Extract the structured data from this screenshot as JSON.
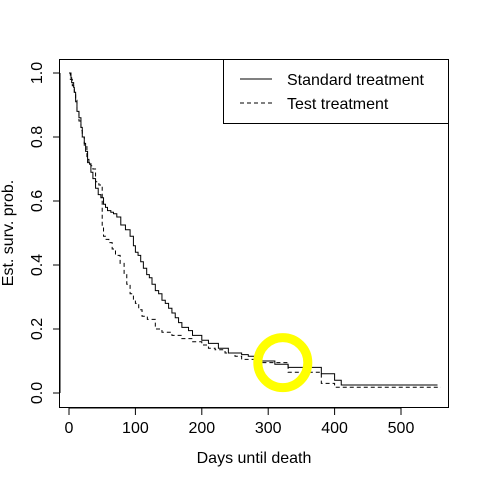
{
  "chart_data": {
    "type": "line",
    "step": true,
    "title": "",
    "xlabel": "Days until death",
    "ylabel": "Est. surv. prob.",
    "xlim": [
      0,
      560
    ],
    "ylim": [
      0,
      1
    ],
    "x_ticks": [
      0,
      100,
      200,
      300,
      400,
      500
    ],
    "x_tick_labels": [
      "0",
      "100",
      "200",
      "300",
      "400",
      "500"
    ],
    "y_ticks": [
      0,
      0.2,
      0.4,
      0.6,
      0.8,
      1.0
    ],
    "y_tick_labels": [
      "0.0",
      "0.2",
      "0.4",
      "0.6",
      "0.8",
      "1.0"
    ],
    "grid": false,
    "legend_position": "top-right",
    "series": [
      {
        "name": "Standard treatment",
        "line_style": "solid",
        "color": "#000000",
        "x": [
          0,
          3,
          4,
          7,
          8,
          10,
          12,
          15,
          18,
          20,
          23,
          25,
          28,
          31,
          33,
          36,
          40,
          44,
          48,
          52,
          55,
          58,
          63,
          67,
          72,
          78,
          85,
          92,
          97,
          100,
          104,
          108,
          112,
          117,
          121,
          125,
          130,
          135,
          140,
          145,
          150,
          155,
          160,
          165,
          170,
          180,
          186,
          200,
          210,
          225,
          240,
          260,
          270,
          290,
          310,
          330,
          380,
          400,
          410,
          420,
          555
        ],
        "y": [
          1.0,
          0.985,
          0.97,
          0.955,
          0.94,
          0.91,
          0.88,
          0.86,
          0.83,
          0.8,
          0.78,
          0.755,
          0.72,
          0.715,
          0.69,
          0.67,
          0.64,
          0.62,
          0.61,
          0.59,
          0.58,
          0.57,
          0.565,
          0.56,
          0.55,
          0.525,
          0.51,
          0.49,
          0.46,
          0.44,
          0.43,
          0.41,
          0.39,
          0.37,
          0.36,
          0.34,
          0.32,
          0.31,
          0.29,
          0.28,
          0.265,
          0.25,
          0.235,
          0.22,
          0.205,
          0.195,
          0.18,
          0.165,
          0.155,
          0.14,
          0.125,
          0.12,
          0.115,
          0.1,
          0.09,
          0.08,
          0.06,
          0.04,
          0.025,
          0.025,
          0.025
        ]
      },
      {
        "name": "Test treatment",
        "line_style": "dashed",
        "color": "#000000",
        "x": [
          0,
          2,
          5,
          8,
          10,
          12,
          15,
          18,
          20,
          23,
          27,
          30,
          33,
          36,
          40,
          45,
          50,
          52,
          55,
          60,
          65,
          70,
          77,
          83,
          87,
          92,
          97,
          100,
          105,
          110,
          118,
          130,
          140,
          155,
          170,
          185,
          200,
          210,
          220,
          235,
          250,
          260,
          290,
          330,
          380,
          400,
          560
        ],
        "y": [
          1.0,
          0.98,
          0.96,
          0.94,
          0.915,
          0.88,
          0.85,
          0.82,
          0.8,
          0.77,
          0.73,
          0.72,
          0.71,
          0.7,
          0.66,
          0.65,
          0.52,
          0.49,
          0.48,
          0.47,
          0.45,
          0.43,
          0.405,
          0.37,
          0.34,
          0.31,
          0.29,
          0.28,
          0.26,
          0.24,
          0.23,
          0.2,
          0.19,
          0.18,
          0.17,
          0.16,
          0.15,
          0.14,
          0.135,
          0.125,
          0.115,
          0.105,
          0.095,
          0.065,
          0.03,
          0.018,
          0.018
        ]
      }
    ]
  },
  "annotation": {
    "shape": "ellipse",
    "color": "#ffff00",
    "center_data": [
      322,
      0.095
    ]
  }
}
